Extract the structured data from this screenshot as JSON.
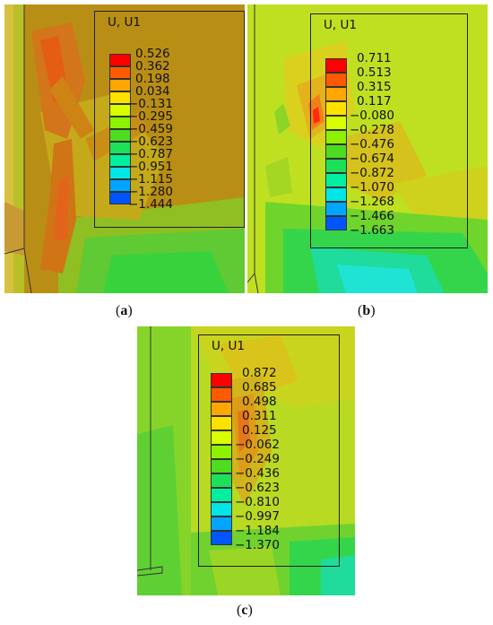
{
  "panels": [
    {
      "id": "a",
      "caption_letter": "a",
      "legend_title": "U, U1",
      "values": [
        "0.526",
        "0.362",
        "0.198",
        "0.034",
        "−0.131",
        "−0.295",
        "−0.459",
        "−0.623",
        "−0.787",
        "−0.951",
        "−1.115",
        "−1.280",
        "−1.444"
      ]
    },
    {
      "id": "b",
      "caption_letter": "b",
      "legend_title": "U, U1",
      "values": [
        "0.711",
        "0.513",
        "0.315",
        "0.117",
        "−0.080",
        "−0.278",
        "−0.476",
        "−0.674",
        "−0.872",
        "−1.070",
        "−1.268",
        "−1.466",
        "−1.663"
      ]
    },
    {
      "id": "c",
      "caption_letter": "c",
      "legend_title": "U, U1",
      "values": [
        "0.872",
        "0.685",
        "0.498",
        "0.311",
        "0.125",
        "−0.062",
        "−0.249",
        "−0.436",
        "−0.623",
        "−0.810",
        "−0.997",
        "−1.184",
        "−1.370"
      ]
    }
  ],
  "colorbar": [
    "#ff0000",
    "#ff5a00",
    "#ffa600",
    "#ffe100",
    "#d7ff00",
    "#8ef100",
    "#4ddc1f",
    "#1de05a",
    "#00f0a0",
    "#00e6e6",
    "#00a6ff",
    "#0055ff",
    "#0000ff"
  ],
  "field_colors": {
    "hot": "#e06a12",
    "warm": "#cf9a13",
    "mid": "#b9c222",
    "yellowgreen": "#c9e21f",
    "green": "#86d42a",
    "deepgreen": "#3fcf3a",
    "teal": "#22dca0",
    "cyan": "#1fe6d6"
  }
}
